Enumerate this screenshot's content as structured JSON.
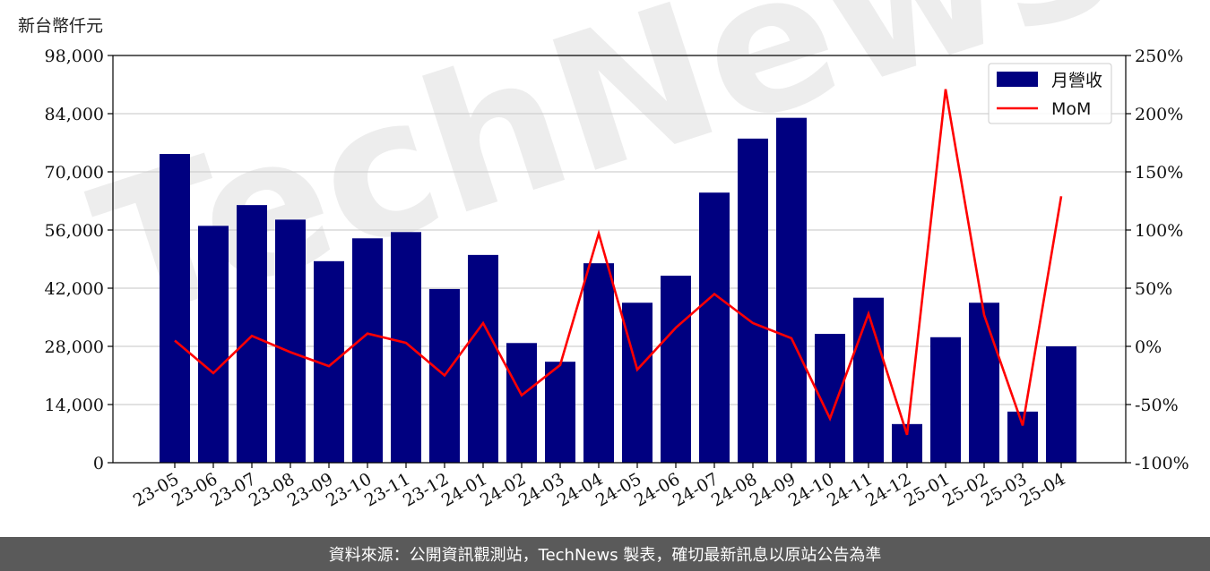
{
  "unit_label": "新台幣仟元",
  "footer_text": "資料來源：公開資訊觀測站，TechNews 製表，確切最新訊息以原站公告為準",
  "watermark_text": "TechNews",
  "chart_data": {
    "type": "bar+line",
    "categories": [
      "23-05",
      "23-06",
      "23-07",
      "23-08",
      "23-09",
      "23-10",
      "23-11",
      "23-12",
      "24-01",
      "24-02",
      "24-03",
      "24-04",
      "24-05",
      "24-06",
      "24-07",
      "24-08",
      "24-09",
      "24-10",
      "24-11",
      "24-12",
      "25-01",
      "25-02",
      "25-03",
      "25-04"
    ],
    "series": [
      {
        "name": "月營收",
        "type": "bar",
        "axis": "left",
        "color": "#000080",
        "values": [
          74300,
          57000,
          62000,
          58500,
          48500,
          54000,
          55500,
          41800,
          50000,
          28800,
          24300,
          48000,
          38500,
          45000,
          65000,
          78000,
          83000,
          31000,
          39700,
          9300,
          30200,
          38500,
          12300,
          28000
        ]
      },
      {
        "name": "MoM",
        "type": "line",
        "axis": "right",
        "color": "#ff0000",
        "values": [
          5,
          -23,
          9,
          -5,
          -17,
          11,
          3,
          -25,
          20,
          -42,
          -16,
          97,
          -20,
          16,
          45,
          20,
          7,
          -62,
          28,
          -76,
          221,
          27,
          -68,
          129
        ]
      }
    ],
    "y_left": {
      "ylim": [
        0,
        98000
      ],
      "ticks": [
        "0",
        "14,000",
        "28,000",
        "42,000",
        "56,000",
        "70,000",
        "84,000",
        "98,000"
      ]
    },
    "y_right": {
      "ylim": [
        -100,
        250
      ],
      "ticks": [
        "-100%",
        "-50%",
        "0%",
        "50%",
        "100%",
        "150%",
        "200%",
        "250%"
      ]
    },
    "grid": true,
    "legend_position": "top-right"
  }
}
